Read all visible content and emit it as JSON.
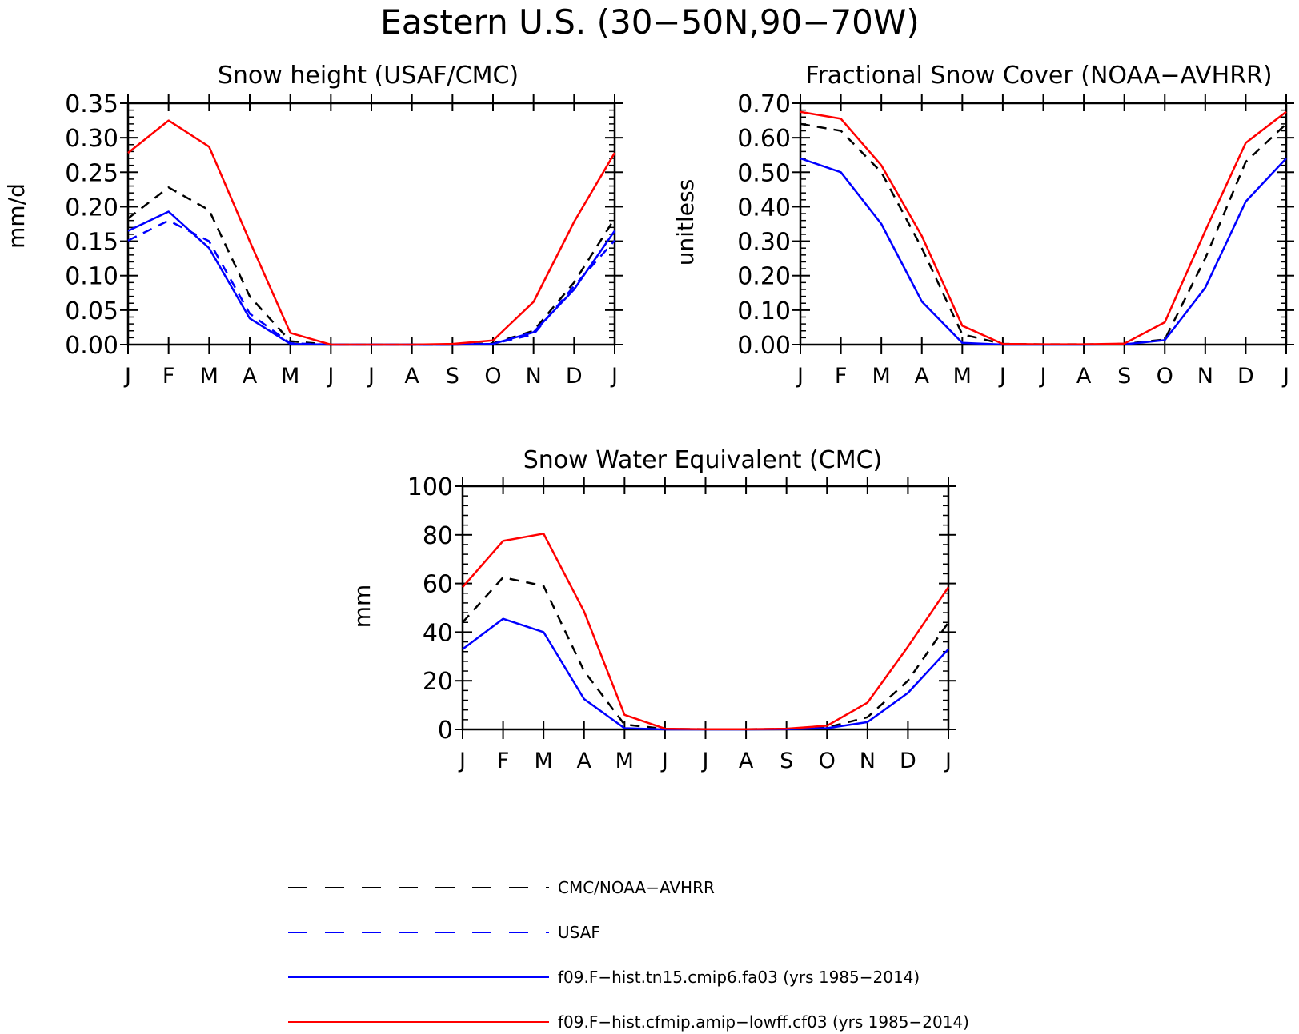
{
  "figure": {
    "title": "Eastern U.S. (30−50N,90−70W)"
  },
  "chart_data": [
    {
      "type": "line",
      "title": "Snow height (USAF/CMC)",
      "xlabel": "",
      "ylabel": "mm/d",
      "categories": [
        "J",
        "F",
        "M",
        "A",
        "M",
        "J",
        "J",
        "A",
        "S",
        "O",
        "N",
        "D",
        "J"
      ],
      "ylim": [
        0,
        0.35
      ],
      "yticks": [
        "0.00",
        "0.05",
        "0.10",
        "0.15",
        "0.20",
        "0.25",
        "0.30",
        "0.35"
      ],
      "grid": false,
      "series": [
        {
          "name": "CMC/NOAA−AVHRR",
          "color": "#000000",
          "dashed": true,
          "values": [
            0.183,
            0.228,
            0.195,
            0.07,
            0.005,
            0.0,
            0.0,
            0.0,
            0.0,
            0.002,
            0.02,
            0.09,
            0.183
          ]
        },
        {
          "name": "USAF",
          "color": "#0000ff",
          "dashed": true,
          "values": [
            0.151,
            0.18,
            0.15,
            0.045,
            0.002,
            0.0,
            0.0,
            0.0,
            0.0,
            0.001,
            0.015,
            0.085,
            0.151
          ]
        },
        {
          "name": "f09.F−hist.tn15.cmip6.fa03 (yrs 1985−2014)",
          "color": "#0000ff",
          "dashed": false,
          "values": [
            0.165,
            0.193,
            0.14,
            0.038,
            0.001,
            0.0,
            0.0,
            0.0,
            0.0,
            0.001,
            0.018,
            0.08,
            0.165
          ]
        },
        {
          "name": "f09.F−hist.cfmip.amip−lowff.cf03 (yrs 1985−2014)",
          "color": "#ff0000",
          "dashed": false,
          "values": [
            0.278,
            0.325,
            0.287,
            0.15,
            0.017,
            0.0,
            0.0,
            0.0,
            0.001,
            0.006,
            0.062,
            0.178,
            0.278
          ]
        }
      ]
    },
    {
      "type": "line",
      "title": "Fractional Snow Cover (NOAA−AVHRR)",
      "xlabel": "",
      "ylabel": "unitless",
      "categories": [
        "J",
        "F",
        "M",
        "A",
        "M",
        "J",
        "J",
        "A",
        "S",
        "O",
        "N",
        "D",
        "J"
      ],
      "ylim": [
        0,
        0.7
      ],
      "yticks": [
        "0.00",
        "0.10",
        "0.20",
        "0.30",
        "0.40",
        "0.50",
        "0.60",
        "0.70"
      ],
      "grid": false,
      "series": [
        {
          "name": "CMC/NOAA−AVHRR",
          "color": "#000000",
          "dashed": true,
          "values": [
            0.64,
            0.62,
            0.5,
            0.28,
            0.03,
            0.002,
            0.001,
            0.001,
            0.002,
            0.015,
            0.25,
            0.53,
            0.64
          ]
        },
        {
          "name": "f09.F−hist.tn15.cmip6.fa03 (yrs 1985−2014)",
          "color": "#0000ff",
          "dashed": false,
          "values": [
            0.54,
            0.5,
            0.35,
            0.125,
            0.005,
            0.0,
            0.0,
            0.0,
            0.001,
            0.013,
            0.165,
            0.415,
            0.54
          ]
        },
        {
          "name": "f09.F−hist.cfmip.amip−lowff.cf03 (yrs 1985−2014)",
          "color": "#ff0000",
          "dashed": false,
          "values": [
            0.675,
            0.655,
            0.52,
            0.315,
            0.055,
            0.002,
            0.001,
            0.001,
            0.003,
            0.065,
            0.33,
            0.585,
            0.675
          ]
        }
      ]
    },
    {
      "type": "line",
      "title": "Snow Water Equivalent (CMC)",
      "xlabel": "",
      "ylabel": "mm",
      "categories": [
        "J",
        "F",
        "M",
        "A",
        "M",
        "J",
        "J",
        "A",
        "S",
        "O",
        "N",
        "D",
        "J"
      ],
      "ylim": [
        0,
        100
      ],
      "yticks": [
        "0",
        "20",
        "40",
        "60",
        "80",
        "100"
      ],
      "grid": false,
      "series": [
        {
          "name": "CMC/NOAA−AVHRR",
          "color": "#000000",
          "dashed": true,
          "values": [
            44,
            62.5,
            59,
            24,
            2,
            0.2,
            0.1,
            0.1,
            0.2,
            0.8,
            5,
            20,
            44
          ]
        },
        {
          "name": "f09.F−hist.tn15.cmip6.fa03 (yrs 1985−2014)",
          "color": "#0000ff",
          "dashed": false,
          "values": [
            33,
            45.5,
            40,
            12.5,
            0.5,
            0.0,
            0.0,
            0.0,
            0.1,
            0.5,
            3,
            15,
            33
          ]
        },
        {
          "name": "f09.F−hist.cfmip.amip−lowff.cf03 (yrs 1985−2014)",
          "color": "#ff0000",
          "dashed": false,
          "values": [
            58.5,
            77.5,
            80.5,
            48.5,
            6,
            0.3,
            0.1,
            0.1,
            0.3,
            1.5,
            11,
            34,
            58.5
          ]
        }
      ]
    }
  ],
  "legend": {
    "items": [
      {
        "label": "CMC/NOAA−AVHRR",
        "color": "#000000",
        "dashed": true
      },
      {
        "label": "USAF",
        "color": "#0000ff",
        "dashed": true
      },
      {
        "label": "f09.F−hist.tn15.cmip6.fa03 (yrs 1985−2014)",
        "color": "#0000ff",
        "dashed": false
      },
      {
        "label": "f09.F−hist.cfmip.amip−lowff.cf03 (yrs 1985−2014)",
        "color": "#ff0000",
        "dashed": false
      }
    ]
  }
}
